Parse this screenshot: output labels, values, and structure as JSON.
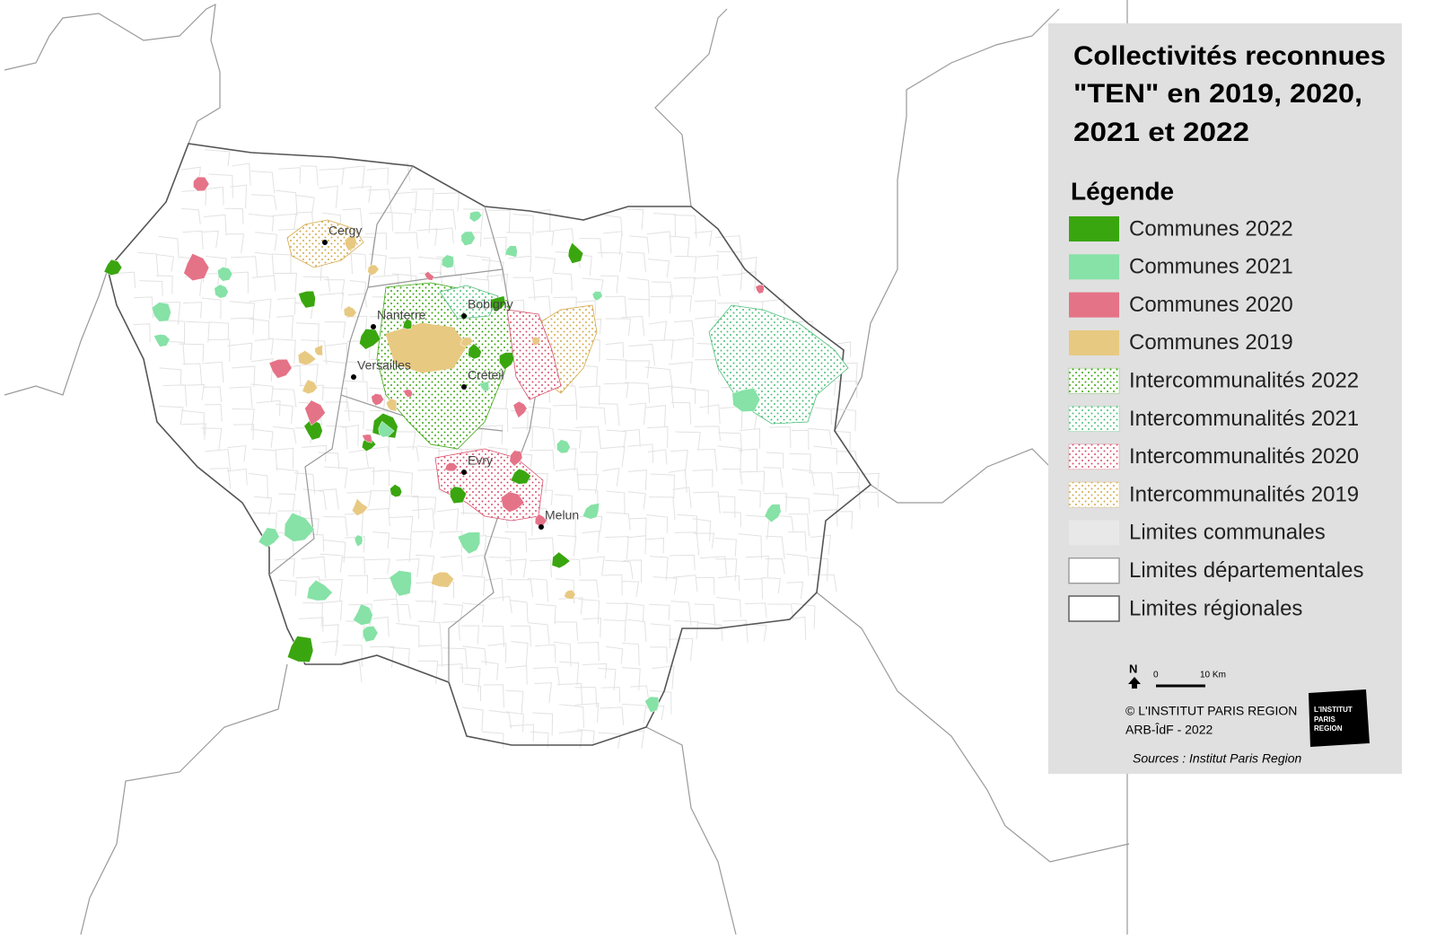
{
  "title": [
    "Collectivités reconnues",
    "\"TEN\" en 2019, 2020,",
    "2021 et 2022"
  ],
  "legend": {
    "title": "Légende",
    "items": [
      {
        "label": "Communes 2022",
        "color": "#3aa60f",
        "style": "solid"
      },
      {
        "label": "Communes 2021",
        "color": "#86e2a6",
        "style": "solid"
      },
      {
        "label": "Communes 2020",
        "color": "#e57388",
        "style": "solid"
      },
      {
        "label": "Communes 2019",
        "color": "#e8c982",
        "style": "solid"
      },
      {
        "label": "Intercommunalités 2022",
        "color": "#3aa60f",
        "style": "dotted"
      },
      {
        "label": "Intercommunalités 2021",
        "color": "#4cbf7a",
        "style": "dotted"
      },
      {
        "label": "Intercommunalités 2020",
        "color": "#d9506c",
        "style": "dotted"
      },
      {
        "label": "Intercommunalités 2019",
        "color": "#d4a94a",
        "style": "dotted"
      },
      {
        "label": "Limites communales",
        "color": "#e8e8e8",
        "style": "area"
      },
      {
        "label": "Limites départementales",
        "color": "#9a9a9a",
        "style": "outline"
      },
      {
        "label": "Limites régionales",
        "color": "#555555",
        "style": "outline"
      }
    ]
  },
  "cities": [
    "Cergy",
    "Nanterre",
    "Bobigny",
    "Versailles",
    "Créteil",
    "Evry",
    "Melun"
  ],
  "north": "N",
  "scale": {
    "start": "0",
    "end": "10 Km"
  },
  "credits": {
    "copyright": "© L'INSTITUT PARIS REGION",
    "partner": "ARB-ÎdF -  2022",
    "sources": "Sources : Institut Paris Region"
  },
  "logo": [
    "L'INSTITUT",
    "PARIS",
    "REGION"
  ]
}
